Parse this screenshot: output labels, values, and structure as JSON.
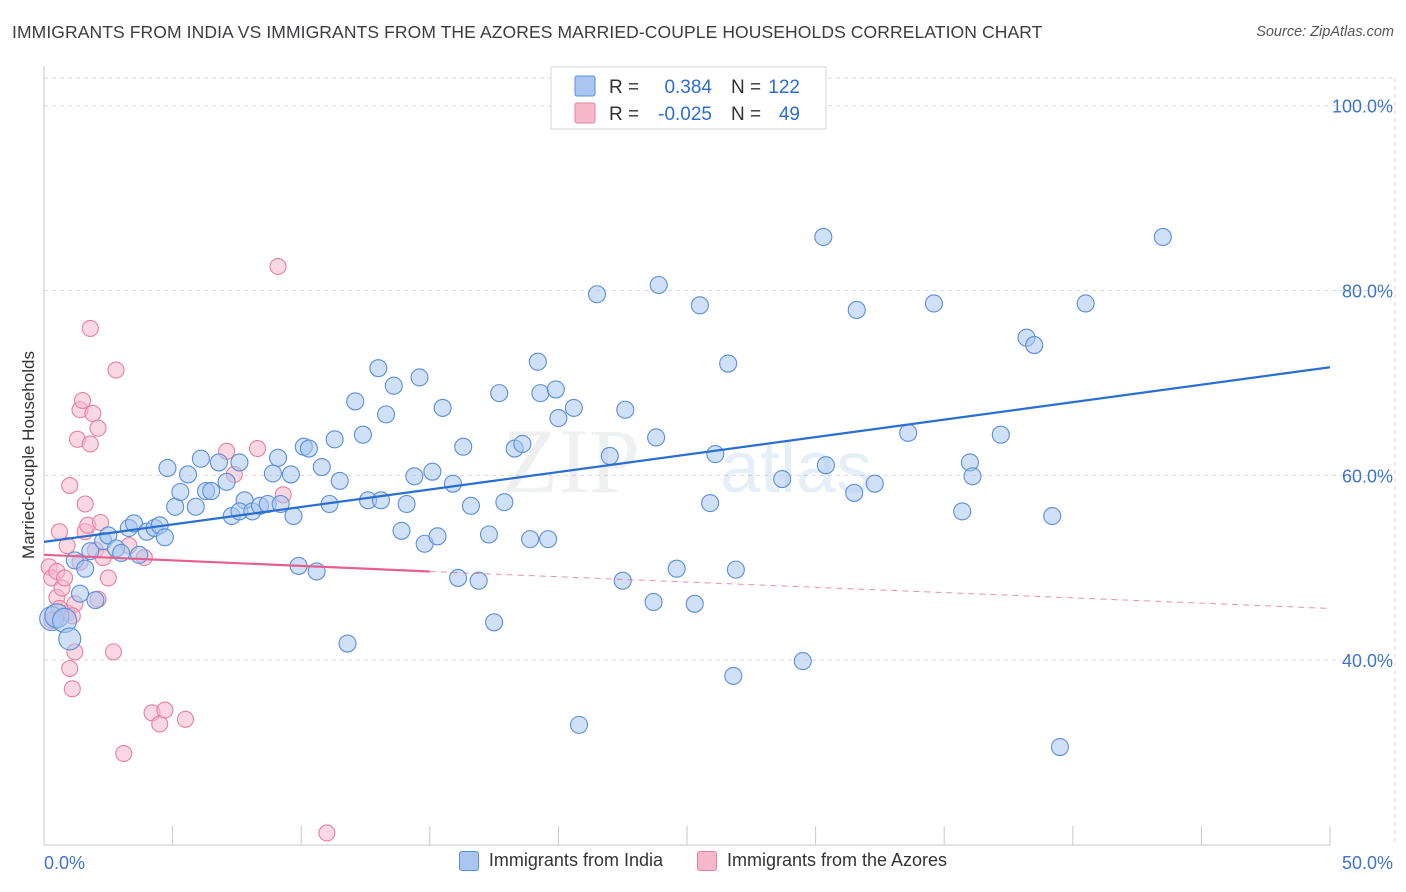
{
  "title": "IMMIGRANTS FROM INDIA VS IMMIGRANTS FROM THE AZORES MARRIED-COUPLE HOUSEHOLDS CORRELATION CHART",
  "source": "Source: ZipAtlas.com",
  "watermark": {
    "part1": "ZIP",
    "part2": "atlas"
  },
  "colors": {
    "india_fill": "#a8c6f0",
    "india_stroke": "#5b8fd8",
    "india_line": "#2a6fd0",
    "azores_fill": "#f6b8cb",
    "azores_stroke": "#e87fa1",
    "azores_line": "#e4608e",
    "tick_label": "#3f74cc",
    "grid": "#d9d9de"
  },
  "stats_legend": {
    "rows": [
      {
        "r_label": "R =",
        "r_value": "0.384",
        "n_label": "N =",
        "n_value": "122"
      },
      {
        "r_label": "R =",
        "r_value": "-0.025",
        "n_label": "N =",
        "n_value": "49"
      }
    ]
  },
  "chart_data": {
    "type": "scatter",
    "title": "IMMIGRANTS FROM INDIA VS IMMIGRANTS FROM THE AZORES MARRIED-COUPLE HOUSEHOLDS CORRELATION CHART",
    "xlabel": "",
    "ylabel": "Married-couple Households",
    "xlim": [
      0,
      50
    ],
    "ylim": [
      20,
      103
    ],
    "x_tick_labels": [
      "0.0%",
      "50.0%"
    ],
    "y_ticks": [
      40,
      60,
      80,
      100
    ],
    "y_tick_labels": [
      "40.0%",
      "60.0%",
      "80.0%",
      "100.0%"
    ],
    "grid": true,
    "legend_position": "bottom",
    "series": [
      {
        "name": "Immigrants from India",
        "trend": {
          "x": [
            0,
            50
          ],
          "y": [
            52.8,
            71.7
          ]
        },
        "points": [
          [
            0.3,
            44.5
          ],
          [
            0.5,
            44.8
          ],
          [
            0.8,
            44.3
          ],
          [
            1.0,
            42.3
          ],
          [
            1.2,
            50.8
          ],
          [
            1.4,
            47.2
          ],
          [
            1.6,
            49.9
          ],
          [
            1.8,
            51.8
          ],
          [
            2.0,
            46.5
          ],
          [
            2.3,
            52.9
          ],
          [
            2.5,
            53.5
          ],
          [
            2.8,
            52.1
          ],
          [
            3.0,
            51.6
          ],
          [
            3.3,
            54.3
          ],
          [
            3.5,
            54.8
          ],
          [
            3.7,
            51.4
          ],
          [
            4.0,
            53.9
          ],
          [
            4.3,
            54.3
          ],
          [
            4.5,
            54.6
          ],
          [
            4.7,
            53.3
          ],
          [
            4.8,
            60.8
          ],
          [
            5.1,
            56.6
          ],
          [
            5.3,
            58.2
          ],
          [
            5.6,
            60.1
          ],
          [
            5.9,
            56.6
          ],
          [
            6.1,
            61.8
          ],
          [
            6.3,
            58.3
          ],
          [
            6.5,
            58.3
          ],
          [
            6.8,
            61.4
          ],
          [
            7.1,
            59.3
          ],
          [
            7.3,
            55.6
          ],
          [
            7.6,
            61.4
          ],
          [
            7.8,
            57.3
          ],
          [
            7.6,
            56.1
          ],
          [
            8.1,
            56.1
          ],
          [
            8.4,
            56.7
          ],
          [
            8.7,
            56.9
          ],
          [
            8.9,
            60.2
          ],
          [
            9.1,
            61.9
          ],
          [
            9.2,
            56.9
          ],
          [
            9.6,
            60.1
          ],
          [
            9.7,
            55.6
          ],
          [
            9.9,
            50.2
          ],
          [
            10.1,
            63.1
          ],
          [
            10.3,
            62.9
          ],
          [
            10.6,
            49.6
          ],
          [
            10.8,
            60.9
          ],
          [
            11.1,
            56.9
          ],
          [
            11.3,
            63.9
          ],
          [
            11.5,
            59.4
          ],
          [
            11.8,
            41.8
          ],
          [
            12.1,
            68.0
          ],
          [
            12.4,
            64.4
          ],
          [
            12.6,
            57.3
          ],
          [
            13.0,
            71.6
          ],
          [
            13.1,
            57.3
          ],
          [
            13.3,
            66.6
          ],
          [
            13.6,
            69.7
          ],
          [
            13.9,
            54.0
          ],
          [
            14.1,
            56.9
          ],
          [
            14.4,
            59.9
          ],
          [
            14.6,
            70.6
          ],
          [
            14.8,
            52.6
          ],
          [
            15.1,
            60.4
          ],
          [
            15.3,
            53.4
          ],
          [
            15.5,
            67.3
          ],
          [
            15.9,
            59.1
          ],
          [
            16.1,
            48.9
          ],
          [
            16.3,
            63.1
          ],
          [
            16.6,
            56.7
          ],
          [
            16.9,
            48.6
          ],
          [
            17.3,
            53.6
          ],
          [
            17.5,
            44.1
          ],
          [
            17.7,
            68.9
          ],
          [
            17.9,
            57.1
          ],
          [
            18.3,
            62.9
          ],
          [
            18.6,
            63.4
          ],
          [
            18.9,
            53.1
          ],
          [
            19.2,
            72.3
          ],
          [
            19.3,
            68.9
          ],
          [
            19.6,
            53.1
          ],
          [
            19.9,
            69.3
          ],
          [
            20.0,
            66.2
          ],
          [
            20.6,
            67.3
          ],
          [
            20.8,
            33.0
          ],
          [
            21.5,
            79.6
          ],
          [
            22.0,
            62.1
          ],
          [
            22.6,
            67.1
          ],
          [
            22.5,
            48.6
          ],
          [
            23.7,
            46.3
          ],
          [
            23.8,
            64.1
          ],
          [
            23.9,
            80.6
          ],
          [
            24.6,
            49.9
          ],
          [
            25.3,
            46.1
          ],
          [
            25.5,
            78.4
          ],
          [
            25.9,
            57.0
          ],
          [
            26.1,
            62.3
          ],
          [
            26.6,
            72.1
          ],
          [
            26.8,
            38.3
          ],
          [
            26.9,
            49.8
          ],
          [
            28.7,
            59.6
          ],
          [
            29.5,
            39.9
          ],
          [
            30.3,
            85.8
          ],
          [
            30.4,
            61.1
          ],
          [
            31.5,
            58.1
          ],
          [
            31.6,
            77.9
          ],
          [
            32.3,
            59.1
          ],
          [
            33.6,
            64.6
          ],
          [
            34.6,
            78.6
          ],
          [
            35.7,
            56.1
          ],
          [
            36.0,
            61.4
          ],
          [
            36.1,
            59.9
          ],
          [
            37.2,
            64.4
          ],
          [
            38.2,
            74.9
          ],
          [
            38.5,
            74.1
          ],
          [
            39.2,
            55.6
          ],
          [
            39.5,
            30.6
          ],
          [
            40.5,
            78.6
          ],
          [
            43.5,
            85.8
          ]
        ]
      },
      {
        "name": "Immigrants from the Azores",
        "trend": {
          "x": [
            0,
            15
          ],
          "y": [
            51.4,
            49.6
          ]
        },
        "trend_extended": {
          "x": [
            15,
            50
          ],
          "y": [
            49.6,
            45.6
          ]
        },
        "points": [
          [
            0.2,
            50.1
          ],
          [
            0.3,
            48.9
          ],
          [
            0.4,
            44.5
          ],
          [
            0.5,
            46.8
          ],
          [
            0.5,
            49.6
          ],
          [
            0.6,
            53.9
          ],
          [
            0.7,
            47.8
          ],
          [
            0.8,
            48.9
          ],
          [
            0.9,
            52.4
          ],
          [
            0.9,
            45.1
          ],
          [
            1.0,
            58.9
          ],
          [
            1.0,
            39.1
          ],
          [
            1.1,
            36.9
          ],
          [
            1.2,
            46.1
          ],
          [
            1.2,
            40.9
          ],
          [
            1.3,
            63.9
          ],
          [
            1.4,
            67.1
          ],
          [
            1.4,
            50.6
          ],
          [
            1.5,
            68.1
          ],
          [
            1.6,
            56.9
          ],
          [
            1.6,
            53.9
          ],
          [
            1.7,
            54.6
          ],
          [
            1.8,
            75.9
          ],
          [
            1.8,
            63.4
          ],
          [
            1.9,
            66.7
          ],
          [
            2.0,
            51.9
          ],
          [
            2.1,
            46.6
          ],
          [
            2.1,
            65.1
          ],
          [
            2.2,
            54.9
          ],
          [
            2.3,
            51.1
          ],
          [
            2.5,
            48.9
          ],
          [
            2.7,
            40.9
          ],
          [
            2.8,
            71.4
          ],
          [
            3.1,
            29.9
          ],
          [
            3.3,
            52.4
          ],
          [
            3.9,
            51.1
          ],
          [
            4.2,
            34.3
          ],
          [
            4.5,
            33.1
          ],
          [
            4.7,
            34.6
          ],
          [
            5.5,
            33.6
          ],
          [
            7.1,
            62.6
          ],
          [
            7.4,
            60.1
          ],
          [
            8.3,
            62.9
          ],
          [
            9.1,
            82.6
          ],
          [
            9.3,
            57.9
          ],
          [
            11.0,
            21.3
          ],
          [
            0.3,
            44.3
          ],
          [
            0.6,
            45.6
          ],
          [
            1.1,
            44.8
          ]
        ]
      }
    ]
  },
  "bottom_legend": {
    "india": "Immigrants from India",
    "azores": "Immigrants from the Azores"
  }
}
